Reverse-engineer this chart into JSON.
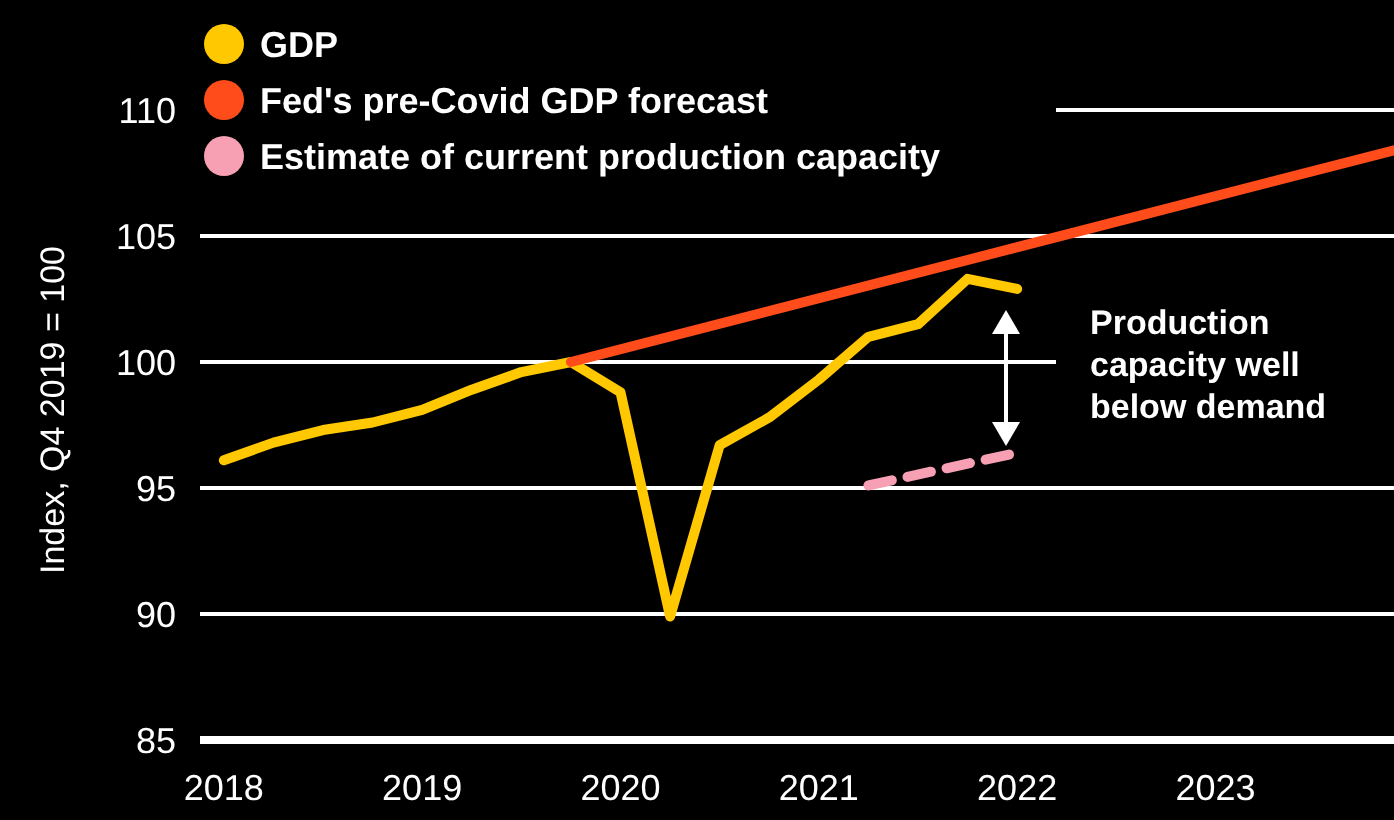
{
  "chart_data": {
    "type": "line",
    "ylabel": "Index, Q4 2019 = 100",
    "x": [
      2018,
      2018.25,
      2018.5,
      2018.75,
      2019,
      2019.25,
      2019.5,
      2019.75,
      2020,
      2020.25,
      2020.5,
      2020.75,
      2021,
      2021.25,
      2021.5,
      2021.75,
      2022
    ],
    "series": [
      {
        "name": "GDP",
        "color": "#ffc800",
        "line_style": "solid",
        "values": [
          96.1,
          96.8,
          97.3,
          97.6,
          98.1,
          98.9,
          99.6,
          100,
          98.8,
          89.9,
          96.7,
          97.8,
          99.3,
          101,
          101.5,
          103.3,
          102.9
        ]
      },
      {
        "name": "Fed's pre-Covid GDP forecast",
        "color": "#ff4c1a",
        "line_style": "solid",
        "x": [
          2019.75,
          2023.9
        ],
        "values": [
          100,
          108.4
        ]
      },
      {
        "name": "Estimate of current production  capacity",
        "color": "#f7a0b4",
        "line_style": "dashed",
        "x": [
          2021.25,
          2022
        ],
        "values": [
          95.1,
          96.4
        ]
      }
    ],
    "annotations": [
      "Production capacity well below demand"
    ],
    "xlim": [
      2017.9,
      2023.9
    ],
    "ylim": [
      85,
      110
    ],
    "xticks": [
      2018,
      2019,
      2020,
      2021,
      2022,
      2023
    ],
    "yticks": [
      85,
      90,
      95,
      100,
      105,
      110
    ],
    "grid": "y",
    "legend": "top left"
  }
}
